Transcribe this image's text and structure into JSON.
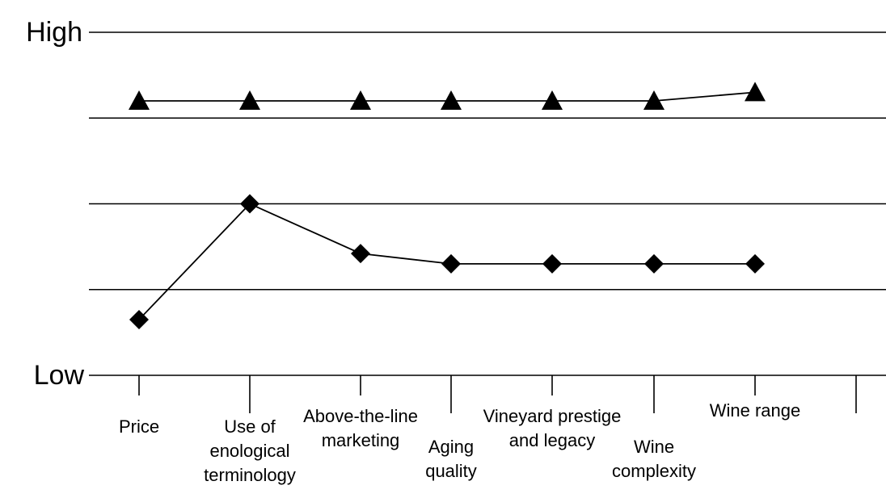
{
  "chart_data": {
    "type": "line",
    "ylim": [
      0,
      4
    ],
    "ytick_labels": {
      "high": "High",
      "low": "Low"
    },
    "gridlines_y": [
      1,
      2,
      3,
      4
    ],
    "categories": [
      [
        "Price"
      ],
      [
        "Use of",
        "enological",
        "terminology"
      ],
      [
        "Above-the-line",
        "marketing"
      ],
      [
        "Aging",
        "quality"
      ],
      [
        "Vineyard prestige",
        "and legacy"
      ],
      [
        "Wine",
        "complexity"
      ],
      [
        "Wine range"
      ]
    ],
    "series": [
      {
        "marker": "triangle",
        "color": "#000000",
        "values": [
          3.2,
          3.2,
          3.2,
          3.2,
          3.2,
          3.2,
          3.3
        ]
      },
      {
        "marker": "diamond",
        "color": "#000000",
        "values": [
          0.65,
          2.0,
          1.42,
          1.3,
          1.3,
          1.3,
          1.3
        ]
      }
    ]
  }
}
